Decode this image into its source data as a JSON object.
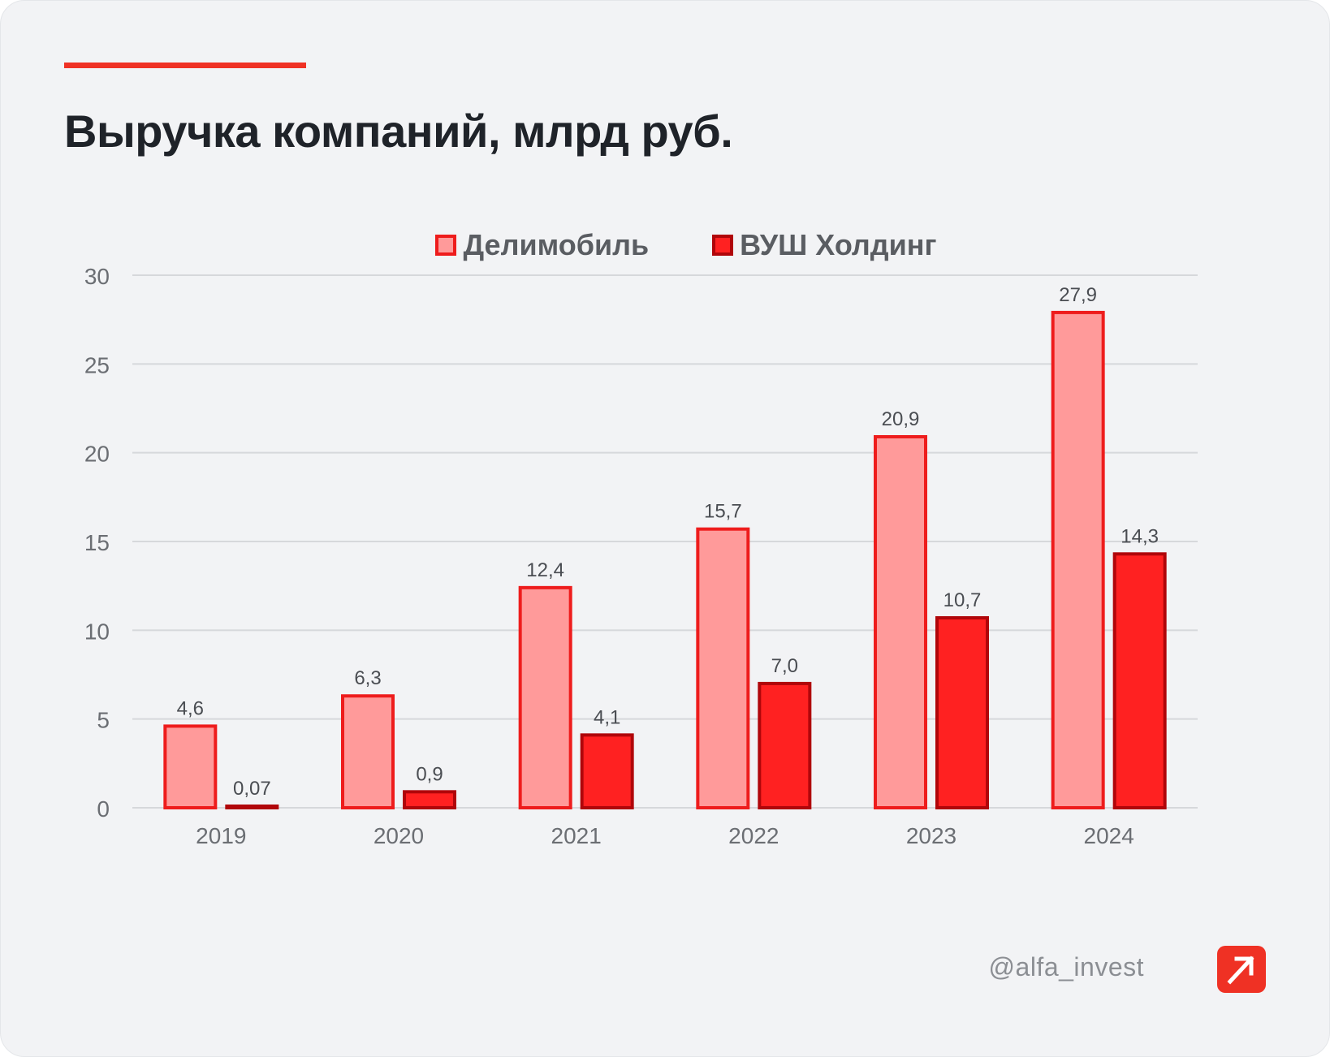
{
  "title": "Выручка компаний, млрд руб.",
  "legend": [
    {
      "label": "Делимобиль",
      "fill": "#ff9a9a",
      "stroke": "#ee1c1c"
    },
    {
      "label": "ВУШ Холдинг",
      "fill": "#ff2121",
      "stroke": "#b0060a"
    }
  ],
  "footer": {
    "handle": "@alfa_invest",
    "logo_icon": "arrow-up-right-icon"
  },
  "colors": {
    "accent": "#ef3124",
    "grid": "#d6d8db"
  },
  "chart_data": {
    "type": "bar",
    "categories": [
      "2019",
      "2020",
      "2021",
      "2022",
      "2023",
      "2024"
    ],
    "series": [
      {
        "name": "Делимобиль",
        "values": [
          4.6,
          6.3,
          12.4,
          15.7,
          20.9,
          27.9
        ],
        "labels": [
          "4,6",
          "6,3",
          "12,4",
          "15,7",
          "20,9",
          "27,9"
        ]
      },
      {
        "name": "ВУШ Холдинг",
        "values": [
          0.07,
          0.9,
          4.1,
          7.0,
          10.7,
          14.3
        ],
        "labels": [
          "0,07",
          "0,9",
          "4,1",
          "7,0",
          "10,7",
          "14,3"
        ]
      }
    ],
    "yticks": [
      "0",
      "5",
      "10",
      "15",
      "20",
      "25",
      "30"
    ],
    "ylim": [
      0,
      30
    ],
    "grid": true,
    "legend_position": "top-center"
  }
}
